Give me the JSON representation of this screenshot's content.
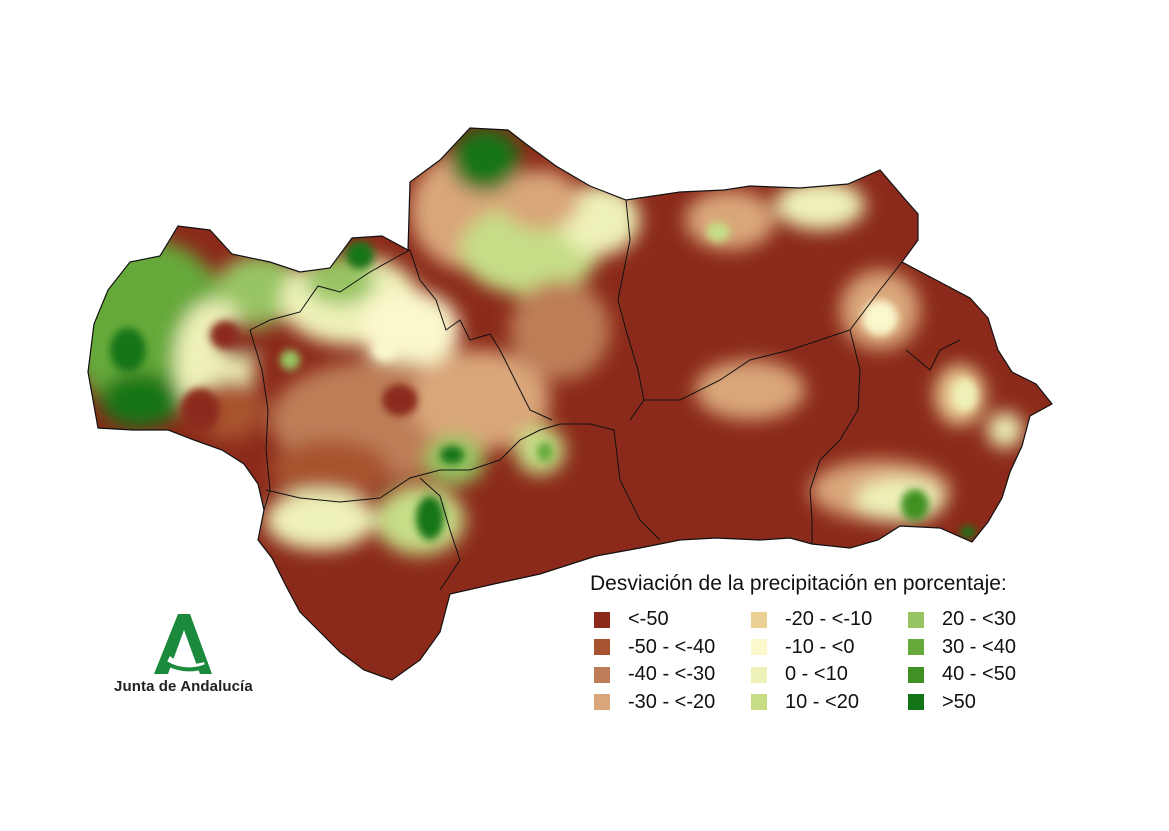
{
  "map": {
    "region": "Andalucía",
    "legend_title": "Desviación de la precipitación en porcentaje:",
    "legend": [
      {
        "label": "<-50",
        "color": "#8b2a1a"
      },
      {
        "label": "-50 - <-40",
        "color": "#a8532f"
      },
      {
        "label": "-40 - <-30",
        "color": "#bd7e57"
      },
      {
        "label": "-30 - <-20",
        "color": "#d9a679"
      },
      {
        "label": "-20 - <-10",
        "color": "#ebcf94"
      },
      {
        "label": "-10 - <0",
        "color": "#fbf8cd"
      },
      {
        "label": "0 - <10",
        "color": "#eef1b8"
      },
      {
        "label": "10 - <20",
        "color": "#c6dd86"
      },
      {
        "label": "20 - <30",
        "color": "#97c462"
      },
      {
        "label": "30 - <40",
        "color": "#66a93a"
      },
      {
        "label": "40 - <50",
        "color": "#3f9124"
      },
      {
        "label": ">50",
        "color": "#137415"
      }
    ]
  },
  "logo": {
    "text": "Junta de Andalucía",
    "color": "#1b8a3c",
    "icon": "junta-andalucia-logo-icon"
  }
}
